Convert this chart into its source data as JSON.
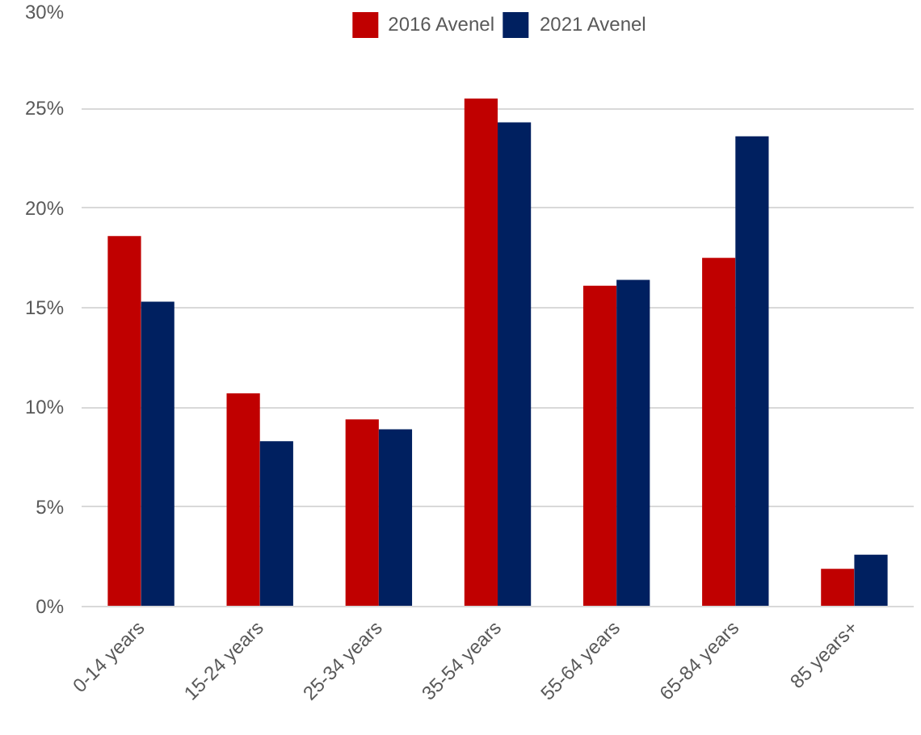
{
  "chart_data": {
    "type": "bar",
    "categories": [
      "0-14 years",
      "15-24 years",
      "25-34 years",
      "35-54 years",
      "55-64 years",
      "65-84 years",
      "85 years+"
    ],
    "series": [
      {
        "name": "2016 Avenel",
        "color": "#c00000",
        "values": [
          18.6,
          10.7,
          9.4,
          25.5,
          16.1,
          17.5,
          1.9
        ]
      },
      {
        "name": "2021 Avenel",
        "color": "#002060",
        "values": [
          15.3,
          8.3,
          8.9,
          24.3,
          16.4,
          23.6,
          2.6
        ]
      }
    ],
    "ylim": [
      0,
      30
    ],
    "yticks": [
      {
        "value": 0,
        "label": "0%"
      },
      {
        "value": 5,
        "label": "5%"
      },
      {
        "value": 10,
        "label": "10%"
      },
      {
        "value": 15,
        "label": "15%"
      },
      {
        "value": 20,
        "label": "20%"
      },
      {
        "value": 25,
        "label": "25%"
      },
      {
        "value": 30,
        "label": "30%"
      }
    ],
    "grid": "y",
    "legend": "top"
  }
}
